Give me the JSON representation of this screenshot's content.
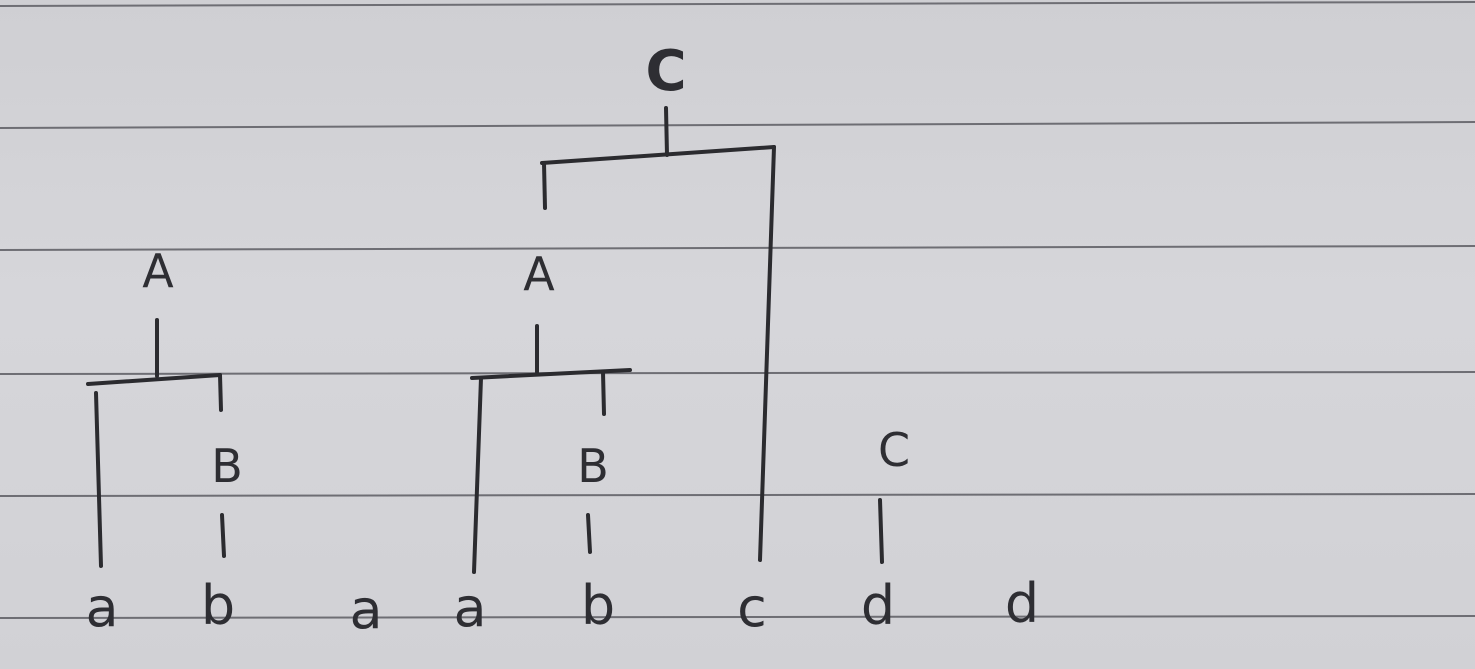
{
  "diagram": {
    "description_labels": {
      "tree1": {
        "root": "A",
        "inner": "B"
      },
      "tree2": {
        "root": "C",
        "inner_root": "A",
        "inner": "B"
      },
      "tree3": {
        "root": "C"
      }
    },
    "node_labels": {
      "t1_root": "A",
      "t1_b": "B",
      "t2_root": "C",
      "t2_a": "A",
      "t2_b": "B",
      "t3_c": "C"
    },
    "leaves": [
      "a",
      "b",
      "a",
      "a",
      "b",
      "c",
      "d",
      "d"
    ],
    "colors": {
      "ink": "#2b2b2f",
      "paper": "#d4d4d8",
      "rule": "#6e6e74"
    }
  }
}
